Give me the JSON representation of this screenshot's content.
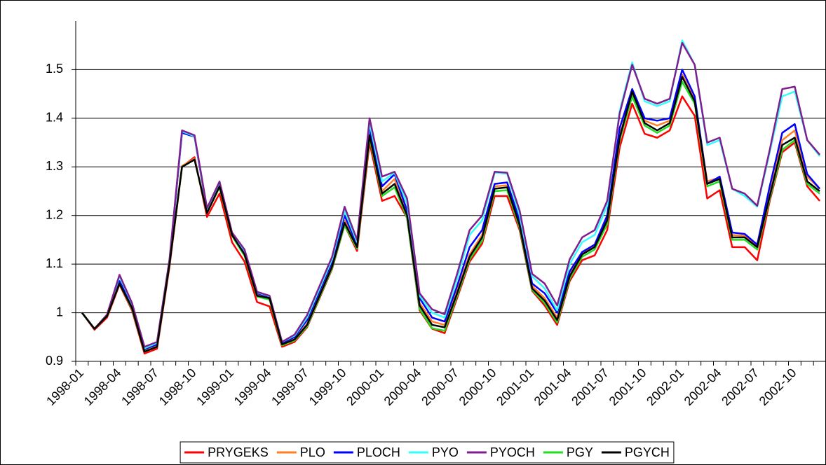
{
  "chart_data": {
    "type": "line",
    "categories": [
      "1998-01",
      null,
      null,
      "1998-04",
      null,
      null,
      "1998-07",
      null,
      null,
      "1998-10",
      null,
      null,
      "1999-01",
      null,
      null,
      "1999-04",
      null,
      null,
      "1999-07",
      null,
      null,
      "1999-10",
      null,
      null,
      "2000-01",
      null,
      null,
      "2000-04",
      null,
      null,
      "2000-07",
      null,
      null,
      "2000-10",
      null,
      null,
      "2001-01",
      null,
      null,
      "2001-04",
      null,
      null,
      "2001-07",
      null,
      null,
      "2001-10",
      null,
      null,
      "2002-01",
      null,
      null,
      "2002-04",
      null,
      null,
      "2002-07",
      null,
      null,
      "2002-10",
      null,
      null
    ],
    "series": [
      {
        "name": "PRYGEKS",
        "color": "#ff0000",
        "values": [
          1.0,
          0.965,
          0.99,
          1.058,
          1.005,
          0.916,
          0.926,
          1.095,
          1.3,
          1.32,
          1.197,
          1.245,
          1.145,
          1.105,
          1.022,
          1.013,
          0.93,
          0.94,
          0.97,
          1.03,
          1.09,
          1.18,
          1.127,
          1.35,
          1.23,
          1.24,
          1.195,
          1.005,
          0.967,
          0.958,
          1.03,
          1.105,
          1.142,
          1.24,
          1.24,
          1.17,
          1.045,
          1.015,
          0.975,
          1.065,
          1.108,
          1.118,
          1.17,
          1.34,
          1.43,
          1.368,
          1.36,
          1.375,
          1.445,
          1.405,
          1.235,
          1.252,
          1.135,
          1.135,
          1.108,
          1.23,
          1.33,
          1.35,
          1.26,
          1.23
        ]
      },
      {
        "name": "PLO",
        "color": "#ff7f27",
        "values": [
          1.0,
          0.967,
          0.994,
          1.062,
          1.012,
          0.922,
          0.932,
          1.102,
          1.302,
          1.317,
          1.207,
          1.262,
          1.162,
          1.122,
          1.037,
          1.032,
          0.937,
          0.947,
          0.977,
          1.038,
          1.098,
          1.19,
          1.138,
          1.37,
          1.25,
          1.275,
          1.205,
          1.02,
          0.982,
          0.975,
          1.045,
          1.12,
          1.16,
          1.26,
          1.262,
          1.185,
          1.055,
          1.03,
          0.99,
          1.08,
          1.123,
          1.138,
          1.195,
          1.365,
          1.452,
          1.395,
          1.385,
          1.395,
          1.49,
          1.438,
          1.27,
          1.278,
          1.16,
          1.158,
          1.138,
          1.245,
          1.355,
          1.375,
          1.28,
          1.255
        ]
      },
      {
        "name": "PLOCH",
        "color": "#0000ff",
        "values": [
          1.0,
          0.967,
          0.995,
          1.065,
          1.015,
          0.925,
          0.935,
          1.105,
          1.37,
          1.362,
          1.21,
          1.265,
          1.163,
          1.125,
          1.04,
          1.033,
          0.938,
          0.95,
          0.985,
          1.045,
          1.105,
          1.2,
          1.14,
          1.38,
          1.26,
          1.285,
          1.21,
          1.03,
          0.99,
          0.982,
          1.055,
          1.135,
          1.17,
          1.265,
          1.268,
          1.19,
          1.06,
          1.04,
          1.0,
          1.085,
          1.125,
          1.14,
          1.2,
          1.38,
          1.46,
          1.4,
          1.395,
          1.4,
          1.5,
          1.445,
          1.265,
          1.28,
          1.165,
          1.162,
          1.14,
          1.26,
          1.37,
          1.388,
          1.285,
          1.255
        ]
      },
      {
        "name": "PYO",
        "color": "#33ffff",
        "values": [
          1.0,
          0.967,
          0.996,
          1.075,
          1.018,
          0.927,
          0.938,
          1.108,
          1.373,
          1.363,
          1.212,
          1.268,
          1.163,
          1.128,
          1.042,
          1.034,
          0.94,
          0.953,
          0.99,
          1.05,
          1.11,
          1.21,
          1.145,
          1.39,
          1.27,
          1.288,
          1.225,
          1.035,
          1.0,
          0.99,
          1.07,
          1.16,
          1.19,
          1.288,
          1.286,
          1.2,
          1.075,
          1.05,
          1.005,
          1.1,
          1.145,
          1.16,
          1.22,
          1.415,
          1.515,
          1.435,
          1.425,
          1.435,
          1.56,
          1.51,
          1.345,
          1.355,
          1.255,
          1.24,
          1.218,
          1.33,
          1.445,
          1.455,
          1.355,
          1.322
        ]
      },
      {
        "name": "PYOCH",
        "color": "#7f1f8f",
        "values": [
          1.0,
          0.967,
          0.996,
          1.078,
          1.02,
          0.93,
          0.94,
          1.11,
          1.375,
          1.365,
          1.215,
          1.27,
          1.165,
          1.13,
          1.043,
          1.035,
          0.94,
          0.955,
          0.995,
          1.055,
          1.115,
          1.218,
          1.15,
          1.4,
          1.28,
          1.29,
          1.235,
          1.04,
          1.007,
          0.997,
          1.08,
          1.17,
          1.2,
          1.29,
          1.288,
          1.21,
          1.08,
          1.06,
          1.015,
          1.11,
          1.155,
          1.17,
          1.23,
          1.41,
          1.51,
          1.44,
          1.43,
          1.44,
          1.555,
          1.51,
          1.35,
          1.36,
          1.255,
          1.245,
          1.22,
          1.335,
          1.46,
          1.465,
          1.355,
          1.325
        ]
      },
      {
        "name": "PGY",
        "color": "#22dd22",
        "values": [
          1.0,
          0.967,
          0.993,
          1.06,
          1.008,
          0.92,
          0.93,
          1.1,
          1.3,
          1.315,
          1.205,
          1.258,
          1.158,
          1.117,
          1.033,
          1.027,
          0.933,
          0.943,
          0.972,
          1.032,
          1.092,
          1.18,
          1.132,
          1.36,
          1.24,
          1.258,
          1.195,
          1.008,
          0.968,
          0.963,
          1.035,
          1.11,
          1.148,
          1.25,
          1.252,
          1.175,
          1.047,
          1.02,
          0.98,
          1.07,
          1.115,
          1.13,
          1.182,
          1.355,
          1.445,
          1.385,
          1.37,
          1.385,
          1.475,
          1.43,
          1.26,
          1.27,
          1.15,
          1.15,
          1.13,
          1.235,
          1.335,
          1.355,
          1.265,
          1.245
        ]
      },
      {
        "name": "PGYCH",
        "color": "#000000",
        "values": [
          1.0,
          0.967,
          0.993,
          1.06,
          1.01,
          0.92,
          0.93,
          1.1,
          1.3,
          1.315,
          1.205,
          1.26,
          1.16,
          1.12,
          1.035,
          1.03,
          0.935,
          0.945,
          0.975,
          1.035,
          1.095,
          1.185,
          1.135,
          1.365,
          1.245,
          1.265,
          1.2,
          1.015,
          0.975,
          0.97,
          1.04,
          1.115,
          1.155,
          1.255,
          1.258,
          1.18,
          1.05,
          1.025,
          0.985,
          1.075,
          1.12,
          1.135,
          1.19,
          1.36,
          1.455,
          1.39,
          1.375,
          1.39,
          1.485,
          1.435,
          1.265,
          1.275,
          1.155,
          1.155,
          1.135,
          1.24,
          1.345,
          1.36,
          1.27,
          1.25
        ]
      }
    ],
    "ylim": [
      0.9,
      1.6
    ],
    "yticks": [
      0.9,
      1,
      1.1,
      1.2,
      1.3,
      1.4,
      1.5
    ],
    "grid": true,
    "legend": "bottom"
  }
}
